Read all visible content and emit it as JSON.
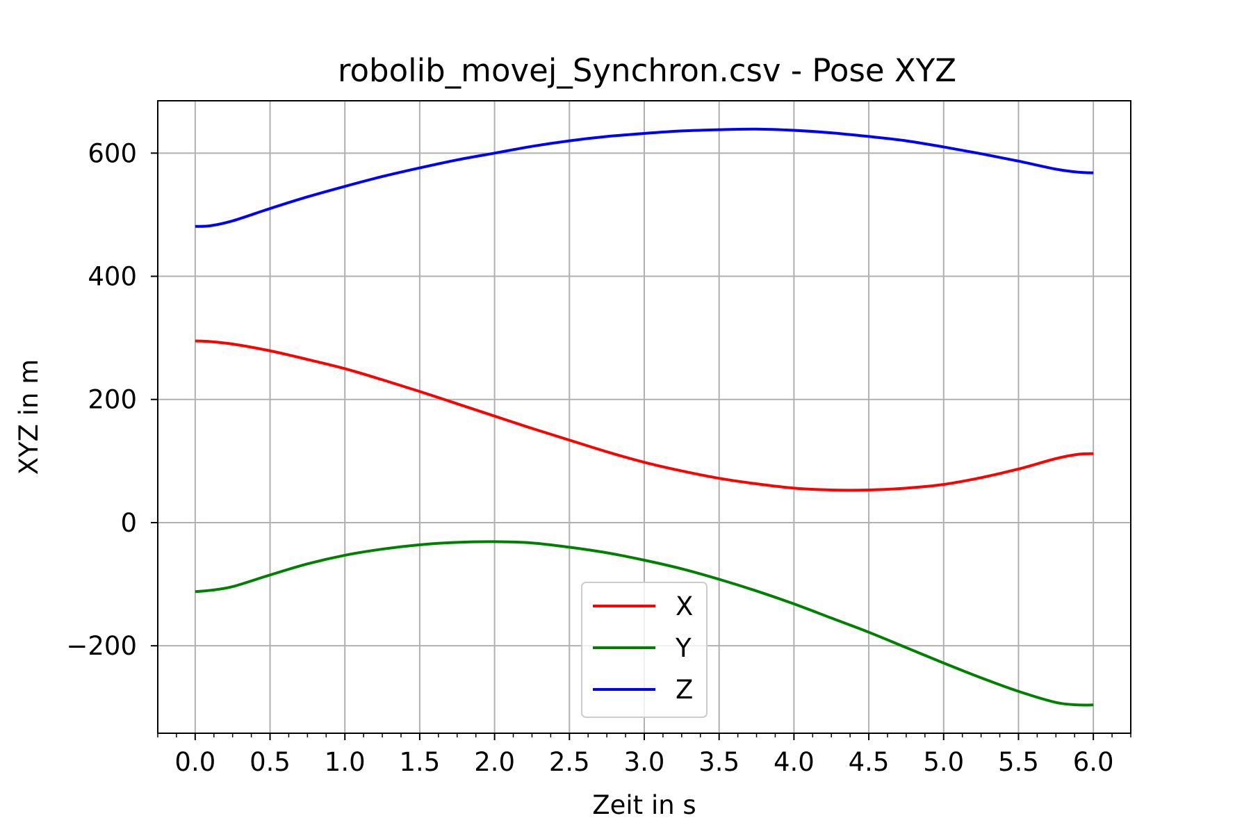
{
  "chart_data": {
    "type": "line",
    "title": "robolib_movej_Synchron.csv - Pose XYZ",
    "xlabel": "Zeit in s",
    "ylabel": "XYZ in m",
    "xlim": [
      -0.25,
      6.25
    ],
    "ylim": [
      -342,
      685
    ],
    "xticks": [
      0.0,
      0.5,
      1.0,
      1.5,
      2.0,
      2.5,
      3.0,
      3.5,
      4.0,
      4.5,
      5.0,
      5.5,
      6.0
    ],
    "xtick_labels": [
      "0.0",
      "0.5",
      "1.0",
      "1.5",
      "2.0",
      "2.5",
      "3.0",
      "3.5",
      "4.0",
      "4.5",
      "5.0",
      "5.5",
      "6.0"
    ],
    "yticks": [
      -200,
      0,
      200,
      400,
      600
    ],
    "ytick_labels": [
      "−200",
      "0",
      "200",
      "400",
      "600"
    ],
    "grid": true,
    "legend_position": "bottom-center",
    "x": [
      0.0,
      0.1,
      0.25,
      0.5,
      0.75,
      1.0,
      1.25,
      1.5,
      1.75,
      2.0,
      2.25,
      2.5,
      2.75,
      3.0,
      3.25,
      3.5,
      3.75,
      4.0,
      4.25,
      4.5,
      4.75,
      5.0,
      5.25,
      5.5,
      5.75,
      5.9,
      6.0
    ],
    "series": [
      {
        "name": "X",
        "color": "#ff0000",
        "values": [
          295,
          294,
          290,
          279,
          265,
          250,
          232,
          213,
          193,
          173,
          153,
          134,
          115,
          98,
          84,
          72,
          63,
          56,
          53,
          53,
          56,
          62,
          73,
          87,
          104,
          111,
          112
        ]
      },
      {
        "name": "Y",
        "color": "#008000",
        "values": [
          -112,
          -110,
          -104,
          -85,
          -67,
          -53,
          -43,
          -36,
          -32,
          -31,
          -33,
          -40,
          -49,
          -61,
          -75,
          -92,
          -111,
          -132,
          -155,
          -178,
          -203,
          -228,
          -252,
          -274,
          -292,
          -296,
          -296
        ]
      },
      {
        "name": "Z",
        "color": "#0000ff",
        "values": [
          481,
          482,
          490,
          510,
          529,
          546,
          562,
          576,
          589,
          600,
          611,
          620,
          627,
          632,
          636,
          638,
          639,
          637,
          633,
          627,
          620,
          610,
          599,
          587,
          574,
          569,
          568
        ]
      }
    ]
  }
}
